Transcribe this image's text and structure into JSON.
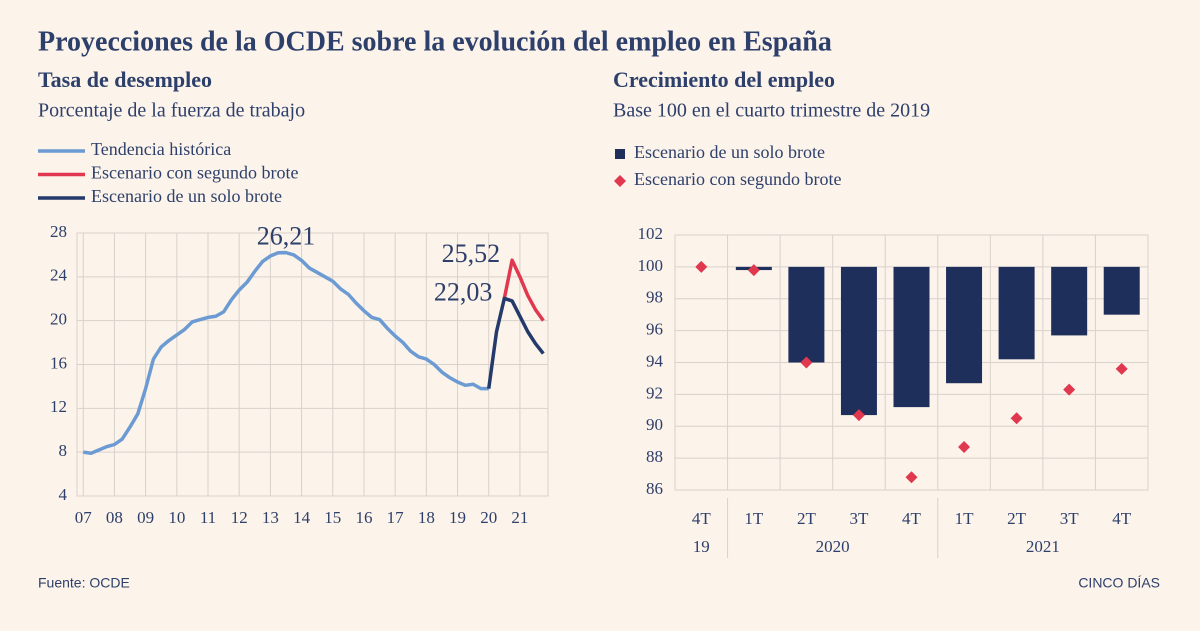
{
  "title": "Proyecciones de la OCDE sobre la evolución del empleo en España",
  "source": "Fuente: OCDE",
  "credit": "CINCO DÍAS",
  "chart_data": [
    {
      "type": "line",
      "title": "Tasa de desempleo",
      "subtitle": "Porcentaje de la fuerza de trabajo",
      "x": [
        2007,
        2007.25,
        2007.5,
        2007.75,
        2008,
        2008.25,
        2008.5,
        2008.75,
        2009,
        2009.25,
        2009.5,
        2009.75,
        2010,
        2010.25,
        2010.5,
        2010.75,
        2011,
        2011.25,
        2011.5,
        2011.75,
        2012,
        2012.25,
        2012.5,
        2012.75,
        2013,
        2013.25,
        2013.5,
        2013.75,
        2014,
        2014.25,
        2014.5,
        2014.75,
        2015,
        2015.25,
        2015.5,
        2015.75,
        2016,
        2016.25,
        2016.5,
        2016.75,
        2017,
        2017.25,
        2017.5,
        2017.75,
        2018,
        2018.25,
        2018.5,
        2018.75,
        2019,
        2019.25,
        2019.5,
        2019.75,
        2020,
        2020.25,
        2020.5,
        2020.75,
        2021,
        2021.25,
        2021.5,
        2021.75
      ],
      "xlim": [
        2006.8,
        2021.9
      ],
      "xticks": [
        {
          "value": 2007,
          "label": "07"
        },
        {
          "value": 2008,
          "label": "08"
        },
        {
          "value": 2009,
          "label": "09"
        },
        {
          "value": 2010,
          "label": "10"
        },
        {
          "value": 2011,
          "label": "11"
        },
        {
          "value": 2012,
          "label": "12"
        },
        {
          "value": 2013,
          "label": "13"
        },
        {
          "value": 2014,
          "label": "14"
        },
        {
          "value": 2015,
          "label": "15"
        },
        {
          "value": 2016,
          "label": "16"
        },
        {
          "value": 2017,
          "label": "17"
        },
        {
          "value": 2018,
          "label": "18"
        },
        {
          "value": 2019,
          "label": "19"
        },
        {
          "value": 2020,
          "label": "20"
        },
        {
          "value": 2021,
          "label": "21"
        }
      ],
      "ylim": [
        4,
        28
      ],
      "yticks": [
        4,
        8,
        12,
        16,
        20,
        24,
        28
      ],
      "grid": true,
      "series": [
        {
          "name": "Tendencia histórica",
          "color": "#6b9bd2",
          "values": [
            8.0,
            7.9,
            8.2,
            8.5,
            8.7,
            9.2,
            10.3,
            11.5,
            13.8,
            16.5,
            17.6,
            18.2,
            18.7,
            19.2,
            19.9,
            20.1,
            20.3,
            20.4,
            20.8,
            21.9,
            22.8,
            23.5,
            24.5,
            25.4,
            25.9,
            26.2,
            26.21,
            26.0,
            25.5,
            24.8,
            24.4,
            24.0,
            23.6,
            22.9,
            22.4,
            21.6,
            20.9,
            20.3,
            20.1,
            19.3,
            18.6,
            18.0,
            17.2,
            16.7,
            16.5,
            16.0,
            15.3,
            14.8,
            14.4,
            14.1,
            14.2,
            13.8,
            13.8,
            null,
            null,
            null,
            null,
            null,
            null,
            null
          ],
          "value_labels": [
            null,
            null,
            null,
            null,
            null,
            null,
            null,
            null,
            null,
            null,
            null,
            null,
            null,
            null,
            null,
            null,
            null,
            null,
            null,
            null,
            null,
            null,
            null,
            null,
            null,
            null,
            "26,21",
            null,
            null,
            null,
            null,
            null,
            null,
            null,
            null,
            null,
            null,
            null,
            null,
            null,
            null,
            null,
            null,
            null,
            null,
            null,
            null,
            null,
            null,
            null,
            null,
            null,
            null,
            null,
            null,
            null,
            null,
            null,
            null,
            null
          ]
        },
        {
          "name": "Escenario con segundo brote",
          "color": "#e0384f",
          "values": [
            null,
            null,
            null,
            null,
            null,
            null,
            null,
            null,
            null,
            null,
            null,
            null,
            null,
            null,
            null,
            null,
            null,
            null,
            null,
            null,
            null,
            null,
            null,
            null,
            null,
            null,
            null,
            null,
            null,
            null,
            null,
            null,
            null,
            null,
            null,
            null,
            null,
            null,
            null,
            null,
            null,
            null,
            null,
            null,
            null,
            null,
            null,
            null,
            null,
            null,
            null,
            null,
            null,
            null,
            22.03,
            25.52,
            24.0,
            22.3,
            21.0,
            20.0
          ],
          "value_labels": [
            null,
            null,
            null,
            null,
            null,
            null,
            null,
            null,
            null,
            null,
            null,
            null,
            null,
            null,
            null,
            null,
            null,
            null,
            null,
            null,
            null,
            null,
            null,
            null,
            null,
            null,
            null,
            null,
            null,
            null,
            null,
            null,
            null,
            null,
            null,
            null,
            null,
            null,
            null,
            null,
            null,
            null,
            null,
            null,
            null,
            null,
            null,
            null,
            null,
            null,
            null,
            null,
            null,
            null,
            null,
            "25,52",
            null,
            null,
            null,
            null
          ]
        },
        {
          "name": "Escenario de un solo brote",
          "color": "#233a6b",
          "values": [
            null,
            null,
            null,
            null,
            null,
            null,
            null,
            null,
            null,
            null,
            null,
            null,
            null,
            null,
            null,
            null,
            null,
            null,
            null,
            null,
            null,
            null,
            null,
            null,
            null,
            null,
            null,
            null,
            null,
            null,
            null,
            null,
            null,
            null,
            null,
            null,
            null,
            null,
            null,
            null,
            null,
            null,
            null,
            null,
            null,
            null,
            null,
            null,
            null,
            null,
            null,
            null,
            13.8,
            19.0,
            22.03,
            21.8,
            20.4,
            19.0,
            17.9,
            17.0
          ],
          "value_labels": [
            null,
            null,
            null,
            null,
            null,
            null,
            null,
            null,
            null,
            null,
            null,
            null,
            null,
            null,
            null,
            null,
            null,
            null,
            null,
            null,
            null,
            null,
            null,
            null,
            null,
            null,
            null,
            null,
            null,
            null,
            null,
            null,
            null,
            null,
            null,
            null,
            null,
            null,
            null,
            null,
            null,
            null,
            null,
            null,
            null,
            null,
            null,
            null,
            null,
            null,
            null,
            null,
            null,
            null,
            "22,03",
            null,
            null,
            null,
            null,
            null
          ]
        }
      ]
    },
    {
      "type": "bar",
      "title": "Crecimiento del empleo",
      "subtitle": "Base 100 en el cuarto trimestre de 2019",
      "categories": [
        "4T",
        "1T",
        "2T",
        "3T",
        "4T",
        "1T",
        "2T",
        "3T",
        "4T"
      ],
      "x_groups": [
        {
          "label": "19",
          "span": 1
        },
        {
          "label": "2020",
          "span": 4
        },
        {
          "label": "2021",
          "span": 4
        }
      ],
      "ylim": [
        86,
        102
      ],
      "yticks": [
        86,
        88,
        90,
        92,
        94,
        96,
        98,
        100,
        102
      ],
      "bar_base": 100,
      "grid": true,
      "series": [
        {
          "name": "Escenario de un solo brote",
          "color": "#1f2f5c",
          "type": "bar",
          "values": [
            100,
            99.8,
            94.0,
            90.7,
            91.2,
            92.7,
            94.2,
            95.7,
            97.0
          ]
        },
        {
          "name": "Escenario con segundo brote",
          "color": "#e0384f",
          "type": "scatter",
          "values": [
            100,
            99.8,
            94.0,
            90.7,
            86.8,
            88.7,
            90.5,
            92.3,
            93.6
          ]
        }
      ]
    }
  ]
}
